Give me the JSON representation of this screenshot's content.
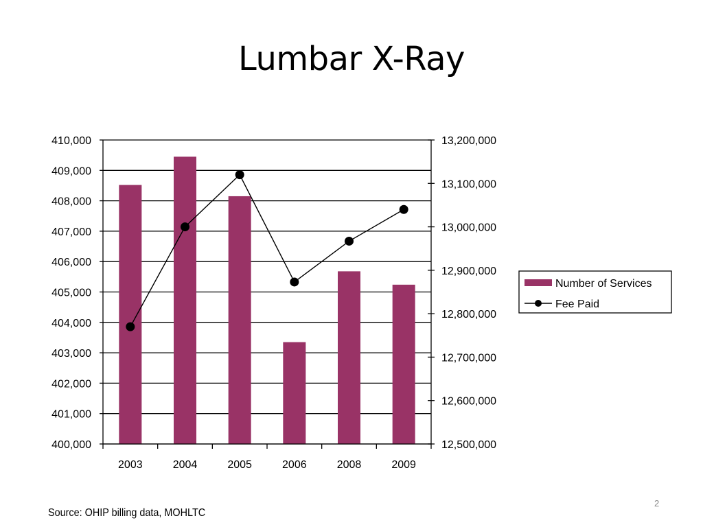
{
  "slide": {
    "title": "Lumbar X-Ray",
    "source": "Source: OHIP billing data, MOHLTC",
    "page_number": "2"
  },
  "colors": {
    "bar": "#993366",
    "line": "#000000",
    "marker": "#000000",
    "grid": "#000000"
  },
  "chart_data": {
    "type": "bar",
    "categories": [
      "2003",
      "2004",
      "2005",
      "2006",
      "2008",
      "2009"
    ],
    "series": [
      {
        "name": "Number of Services",
        "type": "bar",
        "axis": "left",
        "values": [
          408520,
          409450,
          408150,
          403350,
          405680,
          405240
        ]
      },
      {
        "name": "Fee Paid",
        "type": "line",
        "axis": "right",
        "values": [
          12770000,
          13000000,
          13120000,
          12873000,
          12967000,
          13040000
        ]
      }
    ],
    "y_left": {
      "range": [
        400000,
        410000
      ],
      "ticks": [
        "400,000",
        "401,000",
        "402,000",
        "403,000",
        "404,000",
        "405,000",
        "406,000",
        "407,000",
        "408,000",
        "409,000",
        "410,000"
      ]
    },
    "y_right": {
      "range": [
        12500000,
        13200000
      ],
      "ticks": [
        "12,500,000",
        "12,600,000",
        "12,700,000",
        "12,800,000",
        "12,900,000",
        "13,000,000",
        "13,100,000",
        "13,200,000"
      ]
    },
    "grid": true,
    "legend": "right"
  }
}
